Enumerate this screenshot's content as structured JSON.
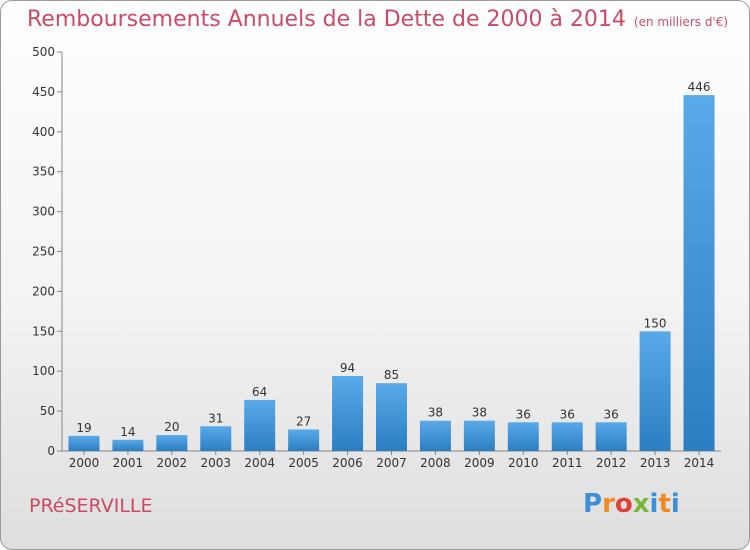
{
  "chart_data": {
    "type": "bar",
    "title": "Remboursements Annuels de la Dette de 2000 à 2014",
    "subtitle": "(en milliers d'€)",
    "categories": [
      "2000",
      "2001",
      "2002",
      "2003",
      "2004",
      "2005",
      "2006",
      "2007",
      "2008",
      "2009",
      "2010",
      "2011",
      "2012",
      "2013",
      "2014"
    ],
    "values": [
      19,
      14,
      20,
      31,
      64,
      27,
      94,
      85,
      38,
      38,
      36,
      36,
      36,
      150,
      446
    ],
    "ylim": [
      0,
      500
    ],
    "yticks": [
      0,
      50,
      100,
      150,
      200,
      250,
      300,
      350,
      400,
      450,
      500
    ],
    "grid": false,
    "bar_color": "#3a93d8"
  },
  "footer": {
    "commune": "PRéSERVILLE",
    "logo": "Proxiti",
    "logo_colors": [
      "#3d8fd6",
      "#f08a22",
      "#e0423a",
      "#7bb63c",
      "#3d8fd6",
      "#f08a22",
      "#3d8fd6"
    ]
  }
}
